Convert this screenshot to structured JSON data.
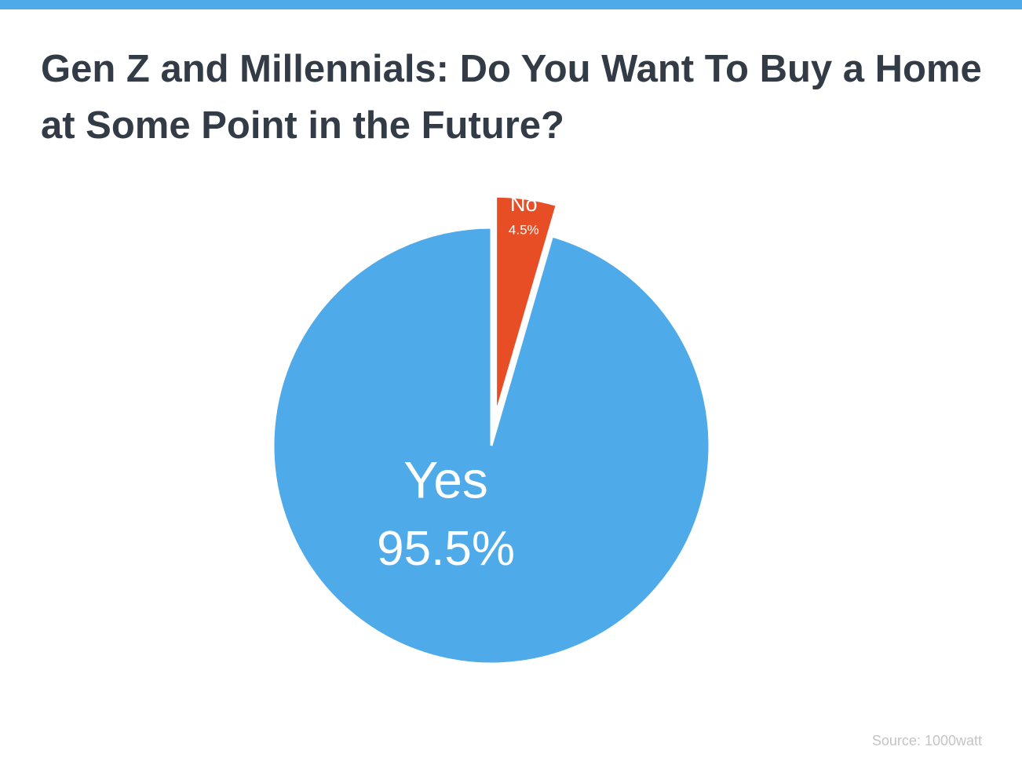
{
  "chart_data": {
    "type": "pie",
    "title": "Gen Z and Millennials: Do You Want To Buy a Home at Some Point in the Future?",
    "categories": [
      "No",
      "Yes"
    ],
    "values": [
      4.5,
      95.5
    ],
    "value_labels": [
      "4.5%",
      "95.5%"
    ],
    "colors": [
      "#e84e25",
      "#4eaae8"
    ],
    "source": "Source: 1000watt"
  }
}
